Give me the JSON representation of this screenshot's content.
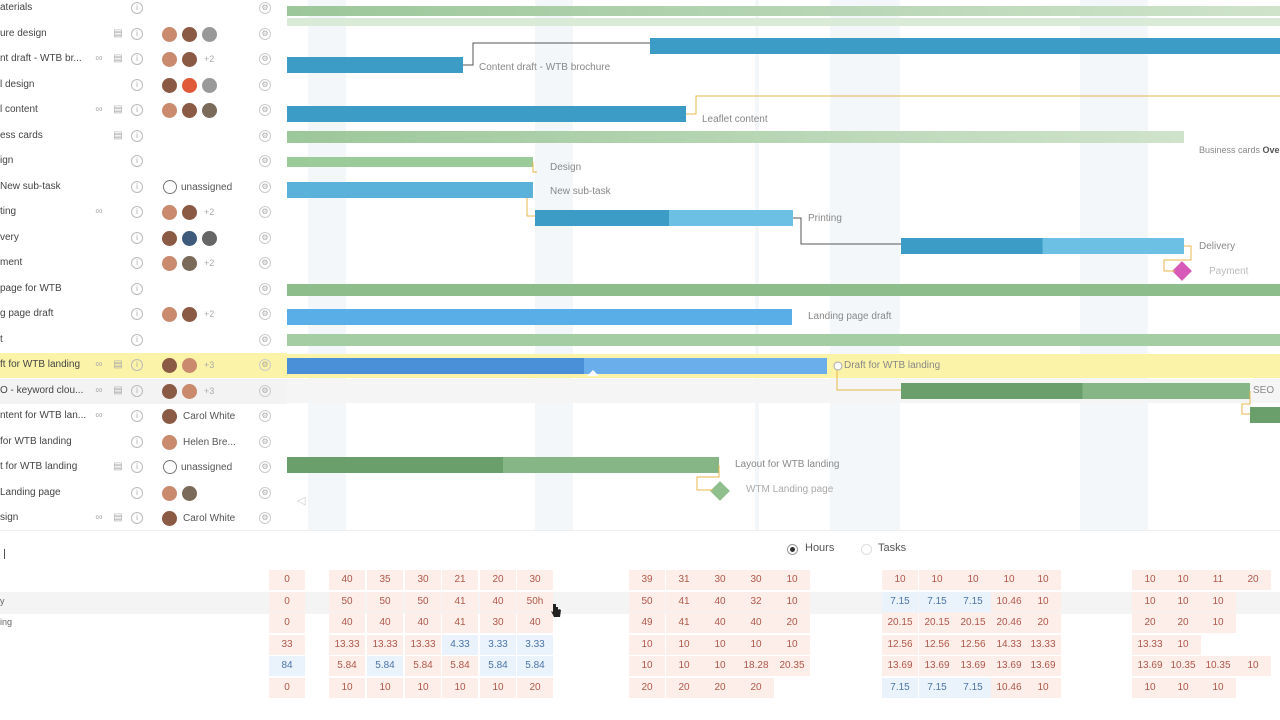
{
  "tasks": [
    {
      "name": "aterials",
      "icons": [
        "info"
      ],
      "assignees": []
    },
    {
      "name": "ure design",
      "icons": [
        "comment",
        "info"
      ],
      "assignees": [
        "#c98a6e",
        "#8a5a44",
        "#999999"
      ],
      "more": ""
    },
    {
      "name": "nt draft - WTB br...",
      "icons": [
        "comment",
        "link",
        "info"
      ],
      "assignees": [
        "#c98a6e",
        "#8a5a44"
      ],
      "more": "+2"
    },
    {
      "name": "l design",
      "icons": [
        "info"
      ],
      "assignees": [
        "#8a5a44",
        "#e05a3a",
        "#999999"
      ],
      "more": ""
    },
    {
      "name": "l content",
      "icons": [
        "comment",
        "link",
        "info"
      ],
      "assignees": [
        "#c98a6e",
        "#8a5a44",
        "#7a6a5a"
      ],
      "more": ""
    },
    {
      "name": "ess cards",
      "icons": [
        "comment",
        "info"
      ],
      "assignees": []
    },
    {
      "name": "ign",
      "icons": [
        "info"
      ],
      "assignees": []
    },
    {
      "name": "New sub-task",
      "icons": [
        "info"
      ],
      "assignees": [],
      "unassigned": "unassigned"
    },
    {
      "name": "ting",
      "icons": [
        "link",
        "info"
      ],
      "assignees": [
        "#c98a6e",
        "#8a5a44"
      ],
      "more": "+2"
    },
    {
      "name": "very",
      "icons": [
        "info"
      ],
      "assignees": [
        "#8a5a44",
        "#3d5a7a",
        "#666666"
      ],
      "more": ""
    },
    {
      "name": "ment",
      "icons": [
        "info"
      ],
      "assignees": [
        "#c98a6e",
        "#7a6a5a"
      ],
      "more": "+2"
    },
    {
      "name": "page for WTB",
      "icons": [
        "info"
      ],
      "assignees": []
    },
    {
      "name": "g page draft",
      "icons": [
        "info"
      ],
      "assignees": [
        "#c98a6e",
        "#8a5a44"
      ],
      "more": "+2"
    },
    {
      "name": "t",
      "icons": [
        "info"
      ],
      "assignees": []
    },
    {
      "name": "ft for WTB landing",
      "icons": [
        "comment",
        "link",
        "info"
      ],
      "assignees": [
        "#8a5a44",
        "#c98a6e"
      ],
      "more": "+3",
      "highlight": true
    },
    {
      "name": "O - keyword clou...",
      "icons": [
        "comment",
        "link",
        "info"
      ],
      "assignees": [
        "#8a5a44",
        "#c98a6e"
      ],
      "more": "+3",
      "alt": true
    },
    {
      "name": "ntent for WTB lan...",
      "icons": [
        "link",
        "info"
      ],
      "assignees": [
        "#8a5a44"
      ],
      "assignee_name": "Carol White"
    },
    {
      "name": "for WTB landing",
      "icons": [
        "info"
      ],
      "assignees": [
        "#c98a6e"
      ],
      "assignee_name": "Helen Bre..."
    },
    {
      "name": "t for WTB landing",
      "icons": [
        "comment",
        "info"
      ],
      "assignees": [],
      "unassigned": "unassigned"
    },
    {
      "name": "Landing page",
      "icons": [
        "info"
      ],
      "assignees": [
        "#c98a6e",
        "#7a6a5a"
      ],
      "more": ""
    },
    {
      "name": "sign",
      "icons": [
        "comment",
        "link",
        "info"
      ],
      "assignees": [
        "#8a5a44"
      ],
      "assignee_name": "Carol White"
    }
  ],
  "gantt_labels": {
    "content_draft": "Content draft - WTB brochure",
    "leaflet": "Leaflet content",
    "business_cards": "Business cards",
    "business_cards_over": "Ove",
    "design": "Design",
    "new_subtask": "New sub-task",
    "printing": "Printing",
    "delivery": "Delivery",
    "payment": "Payment",
    "landing_draft": "Landing page draft",
    "draft_wtb": "Draft for WTB landing",
    "seo": "SEO",
    "layout_wtb": "Layout for WTB landing",
    "wtm_landing": "WTM Landing page"
  },
  "toggle": {
    "hours": "Hours",
    "tasks": "Tasks"
  },
  "workload": {
    "labels": [
      "",
      "y",
      "ing",
      "",
      "",
      ""
    ],
    "rows": [
      {
        "cells": [
          [
            "o",
            "0",
            287
          ],
          [
            "o",
            "40",
            347
          ],
          [
            "o",
            "35",
            385
          ],
          [
            "o",
            "30",
            423
          ],
          [
            "o",
            "21",
            460
          ],
          [
            "o",
            "20",
            498
          ],
          [
            "o",
            "30",
            535
          ],
          [
            "o",
            "39",
            647
          ],
          [
            "o",
            "31",
            684
          ],
          [
            "o",
            "30",
            720
          ],
          [
            "o",
            "30",
            756
          ],
          [
            "o",
            "10",
            792
          ],
          [
            "o",
            "10",
            900
          ],
          [
            "o",
            "10",
            937
          ],
          [
            "o",
            "10",
            973
          ],
          [
            "o",
            "10",
            1009
          ],
          [
            "o",
            "10",
            1043
          ],
          [
            "o",
            "10",
            1150
          ],
          [
            "o",
            "10",
            1183
          ],
          [
            "o",
            "11",
            1218
          ],
          [
            "o",
            "20",
            1253
          ]
        ]
      },
      {
        "cells": [
          [
            "o",
            "0",
            287
          ],
          [
            "o",
            "50",
            347
          ],
          [
            "o",
            "50",
            385
          ],
          [
            "o",
            "50",
            423
          ],
          [
            "o",
            "41",
            460
          ],
          [
            "o",
            "40",
            498
          ],
          [
            "o",
            "50h",
            535
          ],
          [
            "o",
            "50",
            647
          ],
          [
            "o",
            "41",
            684
          ],
          [
            "o",
            "40",
            720
          ],
          [
            "o",
            "32",
            756
          ],
          [
            "o",
            "10",
            792
          ],
          [
            "u",
            "7.15",
            900
          ],
          [
            "u",
            "7.15",
            937
          ],
          [
            "u",
            "7.15",
            973
          ],
          [
            "o",
            "10.46",
            1009
          ],
          [
            "o",
            "10",
            1043
          ],
          [
            "o",
            "10",
            1150
          ],
          [
            "o",
            "10",
            1183
          ],
          [
            "o",
            "10",
            1218
          ]
        ]
      },
      {
        "cells": [
          [
            "o",
            "0",
            287
          ],
          [
            "o",
            "40",
            347
          ],
          [
            "o",
            "40",
            385
          ],
          [
            "o",
            "40",
            423
          ],
          [
            "o",
            "41",
            460
          ],
          [
            "o",
            "30",
            498
          ],
          [
            "o",
            "40",
            535
          ],
          [
            "o",
            "49",
            647
          ],
          [
            "o",
            "41",
            684
          ],
          [
            "o",
            "40",
            720
          ],
          [
            "o",
            "40",
            756
          ],
          [
            "o",
            "20",
            792
          ],
          [
            "o",
            "20.15",
            900
          ],
          [
            "o",
            "20.15",
            937
          ],
          [
            "o",
            "20.15",
            973
          ],
          [
            "o",
            "20.46",
            1009
          ],
          [
            "o",
            "20",
            1043
          ],
          [
            "o",
            "20",
            1150
          ],
          [
            "o",
            "20",
            1183
          ],
          [
            "o",
            "10",
            1218
          ]
        ]
      },
      {
        "cells": [
          [
            "o",
            "33",
            287
          ],
          [
            "o",
            "13.33",
            347
          ],
          [
            "o",
            "13.33",
            385
          ],
          [
            "o",
            "13.33",
            423
          ],
          [
            "u",
            "4.33",
            460
          ],
          [
            "u",
            "3.33",
            498
          ],
          [
            "u",
            "3.33",
            535
          ],
          [
            "o",
            "10",
            647
          ],
          [
            "o",
            "10",
            684
          ],
          [
            "o",
            "10",
            720
          ],
          [
            "o",
            "10",
            756
          ],
          [
            "o",
            "10",
            792
          ],
          [
            "o",
            "12.56",
            900
          ],
          [
            "o",
            "12.56",
            937
          ],
          [
            "o",
            "12.56",
            973
          ],
          [
            "o",
            "14.33",
            1009
          ],
          [
            "o",
            "13.33",
            1043
          ],
          [
            "o",
            "13.33",
            1150
          ],
          [
            "o",
            "10",
            1183
          ]
        ]
      },
      {
        "cells": [
          [
            "u",
            "84",
            287
          ],
          [
            "o",
            "5.84",
            347
          ],
          [
            "u",
            "5.84",
            385
          ],
          [
            "o",
            "5.84",
            423
          ],
          [
            "o",
            "5.84",
            460
          ],
          [
            "u",
            "5.84",
            498
          ],
          [
            "u",
            "5.84",
            535
          ],
          [
            "o",
            "10",
            647
          ],
          [
            "o",
            "10",
            684
          ],
          [
            "o",
            "10",
            720
          ],
          [
            "o",
            "18.28",
            756
          ],
          [
            "o",
            "20.35",
            792
          ],
          [
            "o",
            "13.69",
            900
          ],
          [
            "o",
            "13.69",
            937
          ],
          [
            "o",
            "13.69",
            973
          ],
          [
            "o",
            "13.69",
            1009
          ],
          [
            "o",
            "13.69",
            1043
          ],
          [
            "o",
            "13.69",
            1150
          ],
          [
            "o",
            "10.35",
            1183
          ],
          [
            "o",
            "10.35",
            1218
          ],
          [
            "o",
            "10",
            1253
          ]
        ]
      },
      {
        "cells": [
          [
            "o",
            "0",
            287
          ],
          [
            "o",
            "10",
            347
          ],
          [
            "o",
            "10",
            385
          ],
          [
            "o",
            "10",
            423
          ],
          [
            "o",
            "10",
            460
          ],
          [
            "o",
            "10",
            498
          ],
          [
            "o",
            "20",
            535
          ],
          [
            "o",
            "20",
            647
          ],
          [
            "o",
            "20",
            684
          ],
          [
            "o",
            "20",
            720
          ],
          [
            "o",
            "20",
            756
          ],
          [
            "u",
            "7.15",
            900
          ],
          [
            "u",
            "7.15",
            937
          ],
          [
            "u",
            "7.15",
            973
          ],
          [
            "o",
            "10.46",
            1009
          ],
          [
            "o",
            "10",
            1043
          ],
          [
            "o",
            "10",
            1150
          ],
          [
            "o",
            "10",
            1183
          ],
          [
            "o",
            "10",
            1218
          ]
        ]
      }
    ]
  }
}
